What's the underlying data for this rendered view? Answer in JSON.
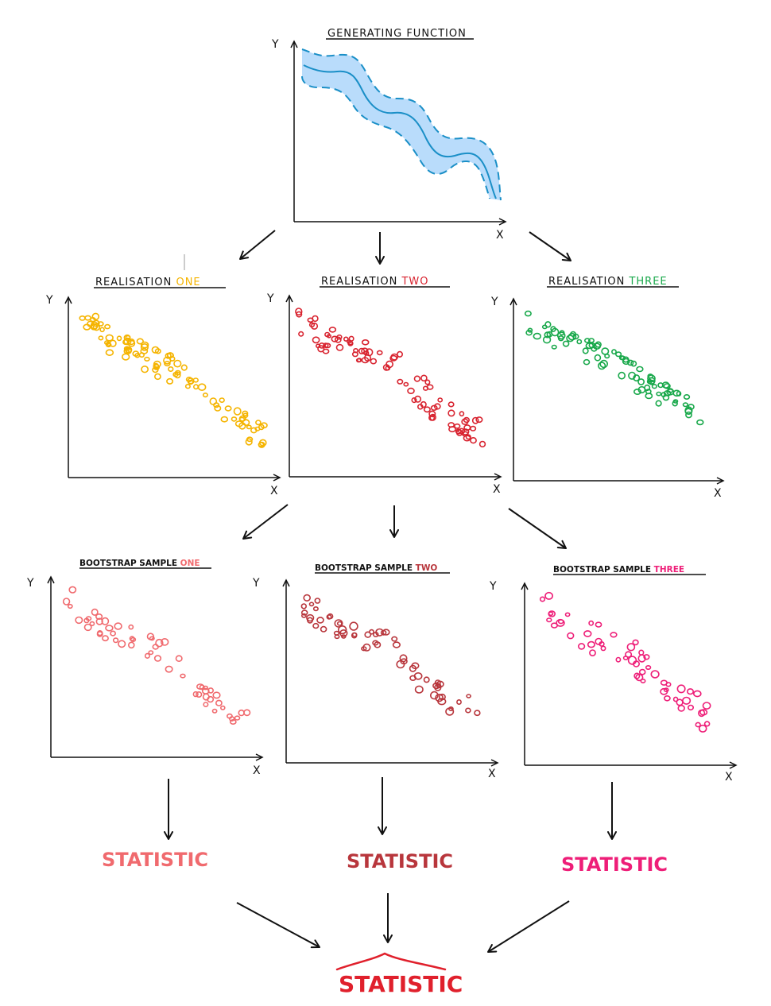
{
  "colors": {
    "generating_band": "#b9dcfb",
    "generating_line": "#1a8fc7",
    "realisation_one": "#f5b400",
    "realisation_two": "#d8232f",
    "realisation_three": "#18a84a",
    "bootstrap_one": "#f06a6e",
    "bootstrap_two": "#b8363c",
    "bootstrap_three": "#ee1e78",
    "final_statistic": "#e0202c",
    "ink": "#111111"
  },
  "generating": {
    "title": "GENERATING FUNCTION",
    "y_label": "Y",
    "x_label": "X"
  },
  "realisations": [
    {
      "prefix": "REALISATION ",
      "suffix": "ONE",
      "y_label": "Y",
      "x_label": "X"
    },
    {
      "prefix": "REALISATION ",
      "suffix": "TWO",
      "y_label": "Y",
      "x_label": "X"
    },
    {
      "prefix": "REALISATION ",
      "suffix": "THREE",
      "y_label": "Y",
      "x_label": "X"
    }
  ],
  "bootstraps": [
    {
      "prefix": "BOOTSTRAP SAMPLE ",
      "suffix": "ONE",
      "y_label": "Y",
      "x_label": "X"
    },
    {
      "prefix": "BOOTSTRAP SAMPLE ",
      "suffix": "TWO",
      "y_label": "Y",
      "x_label": "X"
    },
    {
      "prefix": "BOOTSTRAP SAMPLE ",
      "suffix": "THREE",
      "y_label": "Y",
      "x_label": "X"
    }
  ],
  "statistics": [
    "STATISTIC",
    "STATISTIC",
    "STATISTIC"
  ],
  "final_statistic": "STATISTIC"
}
